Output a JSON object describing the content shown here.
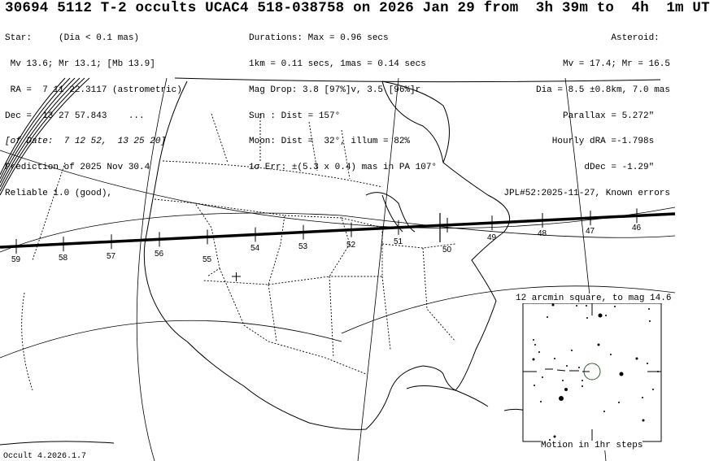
{
  "title": "30694 5112 T-2 occults UCAC4 518-038758 on 2026 Jan 29 from  3h 39m to  4h  1m UT",
  "star": [
    "Star:     (Dia < 0.1 mas)",
    " Mv 13.6; Mr 13.1; [Mb 13.9]",
    " RA =  7 11 22.3117 (astrometric)",
    "Dec =  13 27 57.843    ...",
    "[of Date:  7 12 52,  13 25 20]",
    "Prediction of 2025 Nov 30.4",
    "Reliable 1.0 (good),"
  ],
  "event": [
    "Durations: Max = 0.96 secs",
    "1km = 0.11 secs, 1mas = 0.14 secs",
    "Mag Drop: 3.8 [97%]v, 3.5 [96%]r",
    "Sun : Dist = 157°",
    "Moon: Dist =  32°, illum = 82%",
    "1σ Err: ±(5.3 x 0.4) mas in PA 107°"
  ],
  "asteroid": [
    "Asteroid:  ",
    "Mv = 17.4; Mr = 16.5",
    "Dia = 8.5 ±0.8km, 7.0 mas",
    "Parallax = 5.272\"   ",
    "Hourly dRA =-1.798s   ",
    "dDec = -1.29\"   ",
    "JPL#52:2025-11-27, Known errors"
  ],
  "track": {
    "minute_labels": [
      "59",
      "58",
      "57",
      "56",
      "55",
      "54",
      "53",
      "52",
      "51",
      "50",
      "49",
      "48",
      "47",
      "46"
    ]
  },
  "inset": {
    "caption_top": "12 arcmin square, to mag 14.6",
    "caption_bottom": "Motion in 1hr steps"
  },
  "footer": "Occult 4.2026.1.7",
  "colors": {
    "path": "#000000",
    "background": "#ffffff",
    "target_circle": "#3a5a3a"
  }
}
